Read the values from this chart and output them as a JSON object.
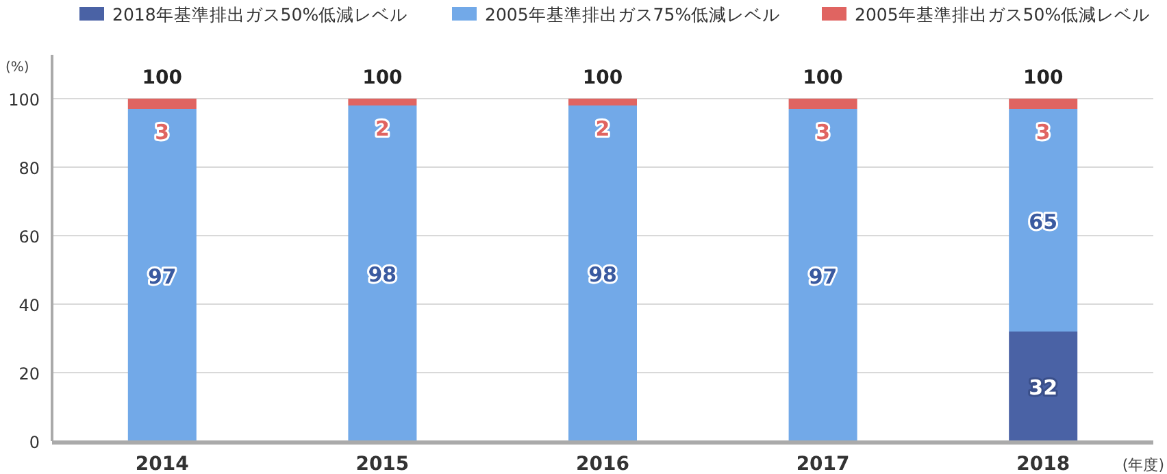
{
  "chart_data": {
    "type": "bar",
    "stacked": true,
    "ylabel": "(%)",
    "xlabel": "(年度)",
    "categories": [
      "2014",
      "2015",
      "2016",
      "2017",
      "2018"
    ],
    "series": [
      {
        "name": "2018年基準排出ガス50%低減レベル",
        "color": "#4a62a5",
        "values": [
          null,
          null,
          null,
          null,
          32
        ],
        "value_labels": [
          null,
          null,
          null,
          null,
          "32"
        ]
      },
      {
        "name": "2005年基準排出ガス75%低減レベル",
        "color": "#72a9e8",
        "values": [
          97,
          98,
          98,
          97,
          65
        ],
        "value_labels": [
          "97",
          "98",
          "98",
          "97",
          "65"
        ]
      },
      {
        "name": "2005年基準排出ガス50%低減レベル",
        "color": "#e06461",
        "values": [
          3,
          2,
          2,
          3,
          3
        ],
        "value_labels": [
          "3",
          "2",
          "2",
          "3",
          "3"
        ]
      }
    ],
    "totals": [
      "100",
      "100",
      "100",
      "100",
      "100"
    ],
    "ylim": [
      0,
      100
    ],
    "yticks": [
      0,
      20,
      40,
      60,
      80,
      100
    ],
    "grid": "y",
    "legend": "top"
  }
}
